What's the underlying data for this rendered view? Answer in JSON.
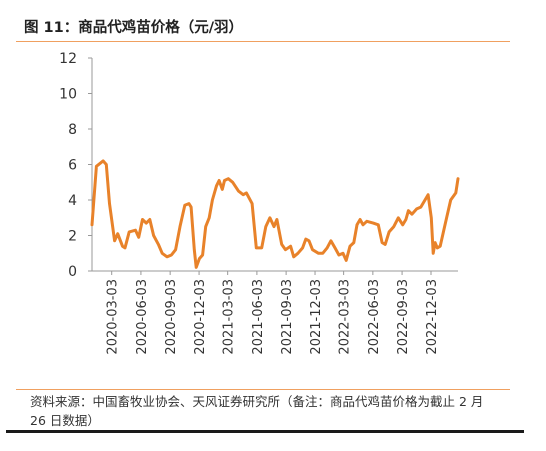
{
  "header": {
    "title": "图 11：商品代鸡苗价格（元/羽）"
  },
  "footer": {
    "source": "资料来源：中国畜牧业协会、天风证券研究所（备注：商品代鸡苗价格为截止 2 月 26 日数据）"
  },
  "colors": {
    "line": "#e8822a",
    "axis": "#999999",
    "text": "#333333",
    "rule": "#f0a060"
  },
  "chart_data": {
    "type": "line",
    "title": "",
    "xlabel": "",
    "ylabel": "",
    "ylim": [
      0,
      12
    ],
    "yticks": [
      0,
      2,
      4,
      6,
      8,
      10,
      12
    ],
    "xlim": [
      "2020-01-01",
      "2023-02-26"
    ],
    "xticks": [
      "2020-03-03",
      "2020-06-03",
      "2020-09-03",
      "2020-12-03",
      "2021-03-03",
      "2021-06-03",
      "2021-09-03",
      "2021-12-03",
      "2022-03-03",
      "2022-06-03",
      "2022-09-03",
      "2022-12-03"
    ],
    "grid": false,
    "legend": "none",
    "series": [
      {
        "name": "",
        "points": [
          [
            "2020-01-01",
            2.6
          ],
          [
            "2020-01-15",
            5.9
          ],
          [
            "2020-02-05",
            6.2
          ],
          [
            "2020-02-15",
            6.0
          ],
          [
            "2020-02-25",
            3.8
          ],
          [
            "2020-03-12",
            1.7
          ],
          [
            "2020-03-22",
            2.1
          ],
          [
            "2020-04-06",
            1.4
          ],
          [
            "2020-04-14",
            1.3
          ],
          [
            "2020-04-27",
            2.2
          ],
          [
            "2020-05-17",
            2.3
          ],
          [
            "2020-05-27",
            1.9
          ],
          [
            "2020-06-08",
            2.9
          ],
          [
            "2020-06-20",
            2.7
          ],
          [
            "2020-07-01",
            2.9
          ],
          [
            "2020-07-13",
            2.0
          ],
          [
            "2020-07-28",
            1.5
          ],
          [
            "2020-08-09",
            1.0
          ],
          [
            "2020-08-24",
            0.8
          ],
          [
            "2020-09-07",
            0.9
          ],
          [
            "2020-09-20",
            1.2
          ],
          [
            "2020-10-04",
            2.5
          ],
          [
            "2020-10-19",
            3.7
          ],
          [
            "2020-11-01",
            3.8
          ],
          [
            "2020-11-08",
            3.6
          ],
          [
            "2020-11-18",
            1.2
          ],
          [
            "2020-11-24",
            0.2
          ],
          [
            "2020-12-04",
            0.7
          ],
          [
            "2020-12-14",
            0.9
          ],
          [
            "2020-12-24",
            2.5
          ],
          [
            "2021-01-04",
            3.0
          ],
          [
            "2021-01-14",
            4.0
          ],
          [
            "2021-01-27",
            4.8
          ],
          [
            "2021-02-04",
            5.1
          ],
          [
            "2021-02-14",
            4.6
          ],
          [
            "2021-02-21",
            5.1
          ],
          [
            "2021-03-05",
            5.2
          ],
          [
            "2021-03-19",
            5.0
          ],
          [
            "2021-04-06",
            4.5
          ],
          [
            "2021-04-21",
            4.3
          ],
          [
            "2021-05-01",
            4.4
          ],
          [
            "2021-05-19",
            3.8
          ],
          [
            "2021-06-01",
            1.3
          ],
          [
            "2021-06-18",
            1.3
          ],
          [
            "2021-07-01",
            2.5
          ],
          [
            "2021-07-14",
            3.0
          ],
          [
            "2021-07-27",
            2.5
          ],
          [
            "2021-08-05",
            2.9
          ],
          [
            "2021-08-20",
            1.5
          ],
          [
            "2021-09-01",
            1.2
          ],
          [
            "2021-09-17",
            1.4
          ],
          [
            "2021-09-27",
            0.8
          ],
          [
            "2021-10-10",
            1.0
          ],
          [
            "2021-10-25",
            1.3
          ],
          [
            "2021-11-04",
            1.8
          ],
          [
            "2021-11-14",
            1.7
          ],
          [
            "2021-11-25",
            1.2
          ],
          [
            "2021-12-14",
            1.0
          ],
          [
            "2021-12-27",
            1.0
          ],
          [
            "2022-01-10",
            1.3
          ],
          [
            "2022-01-22",
            1.7
          ],
          [
            "2022-02-04",
            1.3
          ],
          [
            "2022-02-16",
            0.9
          ],
          [
            "2022-03-01",
            1.0
          ],
          [
            "2022-03-11",
            0.6
          ],
          [
            "2022-03-23",
            1.4
          ],
          [
            "2022-04-04",
            1.6
          ],
          [
            "2022-04-14",
            2.6
          ],
          [
            "2022-04-24",
            2.9
          ],
          [
            "2022-05-03",
            2.6
          ],
          [
            "2022-05-15",
            2.8
          ],
          [
            "2022-06-04",
            2.7
          ],
          [
            "2022-06-20",
            2.6
          ],
          [
            "2022-07-02",
            1.6
          ],
          [
            "2022-07-12",
            1.5
          ],
          [
            "2022-07-24",
            2.2
          ],
          [
            "2022-08-08",
            2.5
          ],
          [
            "2022-08-22",
            3.0
          ],
          [
            "2022-09-05",
            2.6
          ],
          [
            "2022-09-15",
            2.9
          ],
          [
            "2022-09-23",
            3.4
          ],
          [
            "2022-10-04",
            3.2
          ],
          [
            "2022-10-19",
            3.5
          ],
          [
            "2022-11-01",
            3.6
          ],
          [
            "2022-11-14",
            4.0
          ],
          [
            "2022-11-24",
            4.3
          ],
          [
            "2022-12-04",
            3.0
          ],
          [
            "2022-12-10",
            1.0
          ],
          [
            "2022-12-16",
            1.6
          ],
          [
            "2022-12-23",
            1.3
          ],
          [
            "2023-01-01",
            1.4
          ],
          [
            "2023-01-11",
            2.2
          ],
          [
            "2023-01-21",
            3.0
          ],
          [
            "2023-02-03",
            4.0
          ],
          [
            "2023-02-19",
            4.4
          ],
          [
            "2023-02-26",
            5.2
          ]
        ]
      }
    ]
  }
}
